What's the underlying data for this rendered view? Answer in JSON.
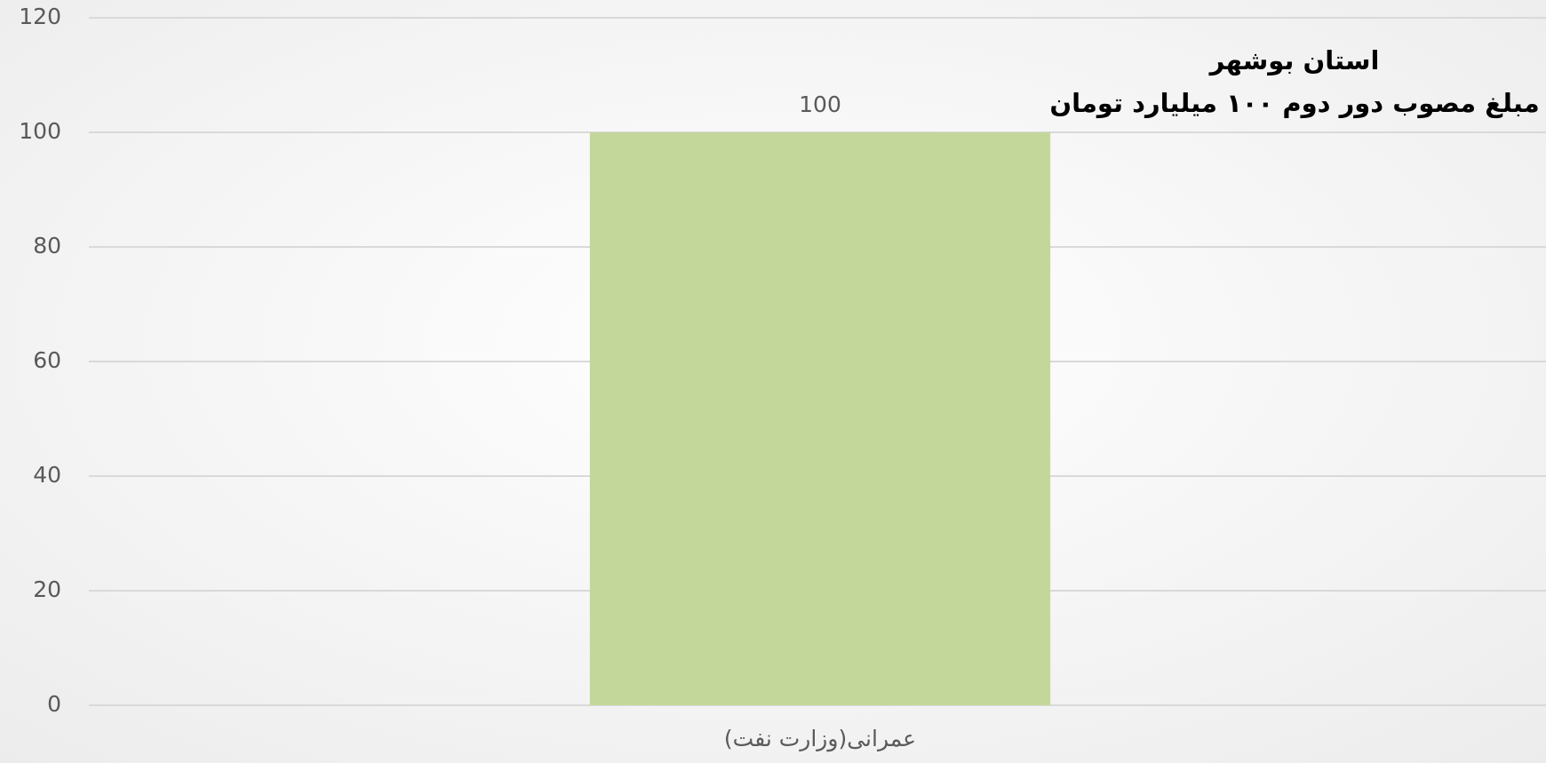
{
  "chart_data": {
    "type": "bar",
    "title": "استان بوشهر",
    "subtitle": "مبلغ مصوب دور دوم ۱۰۰ میلیارد تومان",
    "categories": [
      "عمرانی(وزارت نفت)"
    ],
    "values": [
      100
    ],
    "color": "#c4d79b",
    "ylim": [
      0,
      120
    ],
    "yticks": [
      0,
      20,
      40,
      60,
      80,
      100,
      120
    ],
    "grid": true
  }
}
